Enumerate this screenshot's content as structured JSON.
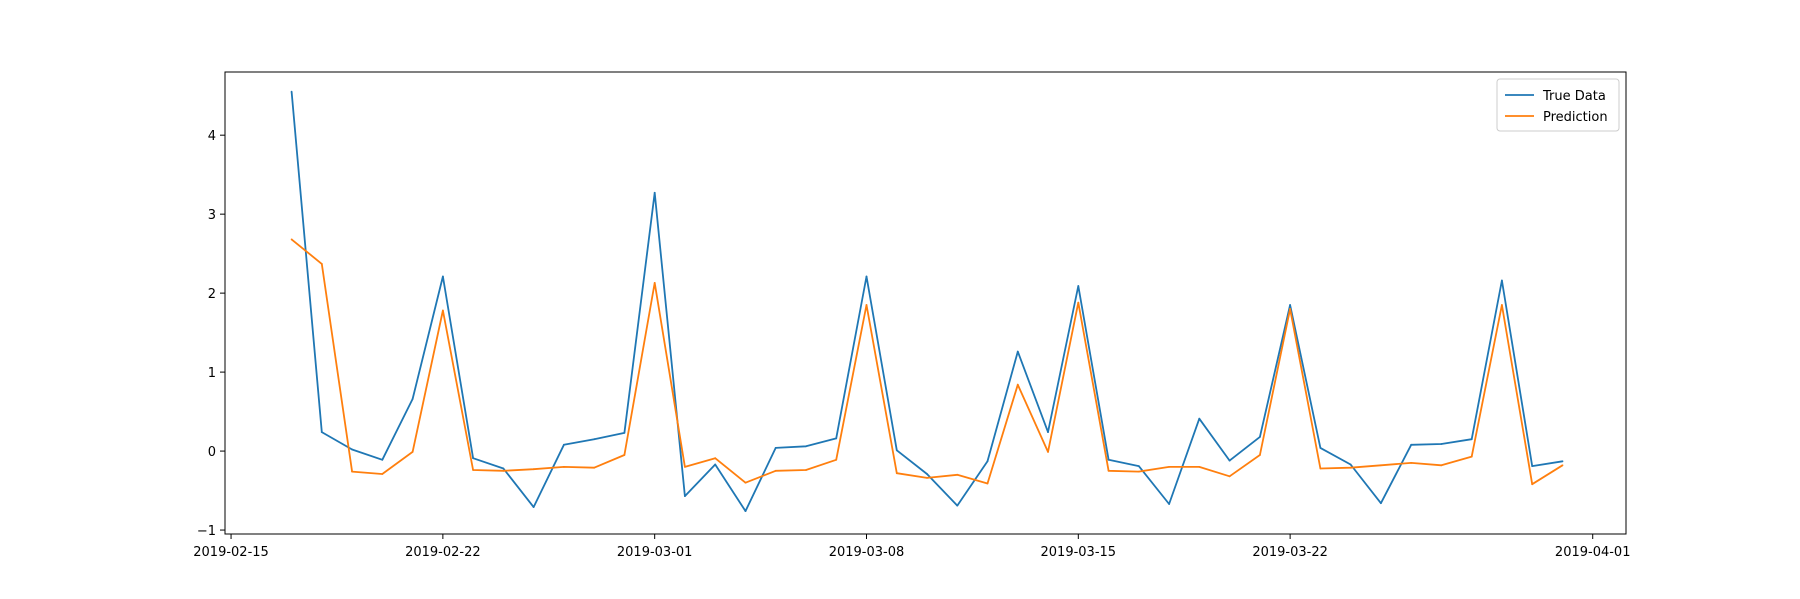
{
  "chart_data": {
    "type": "line",
    "title": "",
    "xlabel": "",
    "ylabel": "",
    "x": [
      "2019-02-17",
      "2019-02-18",
      "2019-02-19",
      "2019-02-20",
      "2019-02-21",
      "2019-02-22",
      "2019-02-23",
      "2019-02-24",
      "2019-02-25",
      "2019-02-26",
      "2019-02-27",
      "2019-02-28",
      "2019-03-01",
      "2019-03-02",
      "2019-03-03",
      "2019-03-04",
      "2019-03-05",
      "2019-03-06",
      "2019-03-07",
      "2019-03-08",
      "2019-03-09",
      "2019-03-10",
      "2019-03-11",
      "2019-03-12",
      "2019-03-13",
      "2019-03-14",
      "2019-03-15",
      "2019-03-16",
      "2019-03-17",
      "2019-03-18",
      "2019-03-19",
      "2019-03-20",
      "2019-03-21",
      "2019-03-22",
      "2019-03-23",
      "2019-03-24",
      "2019-03-25",
      "2019-03-26",
      "2019-03-27",
      "2019-03-28",
      "2019-03-29",
      "2019-03-30",
      "2019-03-31"
    ],
    "series": [
      {
        "name": "True Data",
        "color": "#1f77b4",
        "values": [
          4.55,
          0.24,
          0.02,
          -0.11,
          0.66,
          2.21,
          -0.09,
          -0.22,
          -0.71,
          0.08,
          0.15,
          0.23,
          3.27,
          -0.57,
          -0.17,
          -0.76,
          0.04,
          0.06,
          0.16,
          2.21,
          0.01,
          -0.29,
          -0.69,
          -0.13,
          1.26,
          0.24,
          2.09,
          -0.11,
          -0.19,
          -0.67,
          0.41,
          -0.12,
          0.18,
          1.85,
          0.04,
          -0.17,
          -0.66,
          0.08,
          0.09,
          0.15,
          2.16,
          -0.19,
          -0.13
        ]
      },
      {
        "name": "Prediction",
        "color": "#ff7f0e",
        "values": [
          2.68,
          2.37,
          -0.26,
          -0.29,
          -0.01,
          1.78,
          -0.24,
          -0.25,
          -0.23,
          -0.2,
          -0.21,
          -0.05,
          2.13,
          -0.2,
          -0.09,
          -0.4,
          -0.25,
          -0.24,
          -0.11,
          1.85,
          -0.28,
          -0.34,
          -0.3,
          -0.41,
          0.84,
          -0.01,
          1.88,
          -0.25,
          -0.26,
          -0.2,
          -0.2,
          -0.32,
          -0.05,
          1.8,
          -0.22,
          -0.21,
          -0.18,
          -0.15,
          -0.18,
          -0.07,
          1.85,
          -0.42,
          -0.18
        ]
      }
    ],
    "xlim": [
      "2019-02-15",
      "2019-04-01"
    ],
    "ylim": [
      -1.05,
      4.8
    ],
    "x_ticks": [
      "2019-02-15",
      "2019-02-22",
      "2019-03-01",
      "2019-03-08",
      "2019-03-15",
      "2019-03-22",
      "2019-04-01"
    ],
    "y_ticks": [
      "−1",
      "0",
      "1",
      "2",
      "3",
      "4"
    ],
    "y_tick_values": [
      -1,
      0,
      1,
      2,
      3,
      4
    ],
    "grid": false,
    "legend_position": "top-right"
  }
}
